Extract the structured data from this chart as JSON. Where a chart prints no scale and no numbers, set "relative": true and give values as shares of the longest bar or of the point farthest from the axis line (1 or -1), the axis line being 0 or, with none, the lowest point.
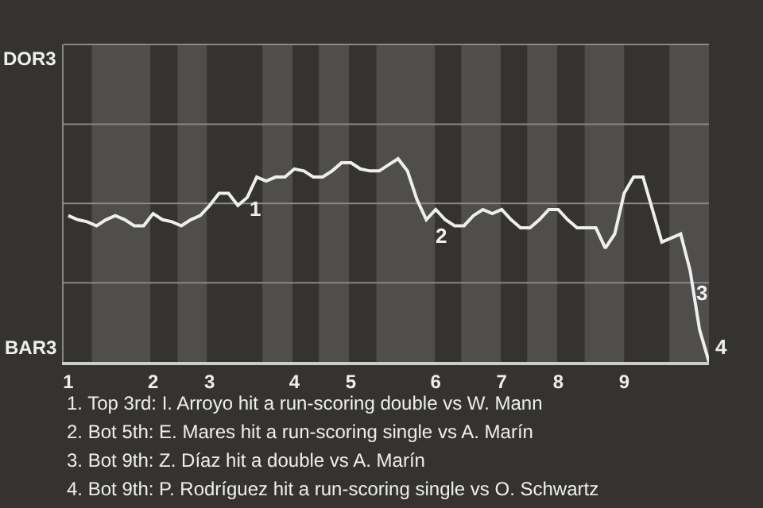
{
  "chart_data": {
    "type": "line",
    "relative": true,
    "categories": [
      "1",
      null,
      null,
      null,
      null,
      null,
      null,
      null,
      null,
      "2",
      null,
      null,
      null,
      null,
      null,
      "3",
      null,
      null,
      null,
      null,
      null,
      null,
      null,
      null,
      "4",
      null,
      null,
      null,
      null,
      null,
      "5",
      null,
      null,
      null,
      null,
      null,
      null,
      null,
      null,
      "6",
      null,
      null,
      null,
      null,
      null,
      null,
      "7",
      null,
      null,
      null,
      null,
      null,
      "8",
      null,
      null,
      null,
      null,
      null,
      null,
      "9",
      null,
      null,
      null,
      null,
      null,
      null,
      null,
      null,
      null
    ],
    "series": [
      {
        "color": "#eeeeee",
        "values": [
          0.72,
          0.7,
          0.69,
          0.67,
          0.7,
          0.72,
          0.7,
          0.67,
          0.67,
          0.73,
          0.7,
          0.69,
          0.67,
          0.7,
          0.72,
          0.77,
          0.83,
          0.83,
          0.77,
          0.81,
          0.91,
          0.89,
          0.91,
          0.91,
          0.95,
          0.94,
          0.91,
          0.91,
          0.94,
          0.98,
          0.98,
          0.95,
          0.94,
          0.94,
          0.97,
          1,
          0.94,
          0.8,
          0.7,
          0.75,
          0.7,
          0.67,
          0.67,
          0.72,
          0.75,
          0.73,
          0.75,
          0.7,
          0.66,
          0.66,
          0.7,
          0.75,
          0.75,
          0.7,
          0.66,
          0.66,
          0.66,
          0.56,
          0.63,
          0.83,
          0.91,
          0.91,
          0.75,
          0.59,
          0.61,
          0.63,
          0.45,
          0.16,
          0
        ]
      }
    ],
    "ref_lines": [
      {
        "axis": "y",
        "value": 0.39,
        "color": "#888888"
      },
      {
        "axis": "y",
        "value": 0.78,
        "color": "#888888"
      },
      {
        "axis": "y",
        "value": 1.17,
        "color": "#888888"
      }
    ],
    "marker": "none",
    "line_style": "solid",
    "annotations": [
      "DOR3",
      "BAR3",
      "1",
      "2",
      "3",
      "4",
      "1. Top 3rd: I. Arroyo hit a run-scoring double vs W. Mann",
      "2. Bot 5th: E. Mares hit a run-scoring single vs A. Marín",
      "3. Bot 9th: Z. Díaz hit a double vs A. Marín",
      "4. Bot 9th: P. Rodríguez hit a run-scoring single vs O. Schwartz"
    ]
  }
}
